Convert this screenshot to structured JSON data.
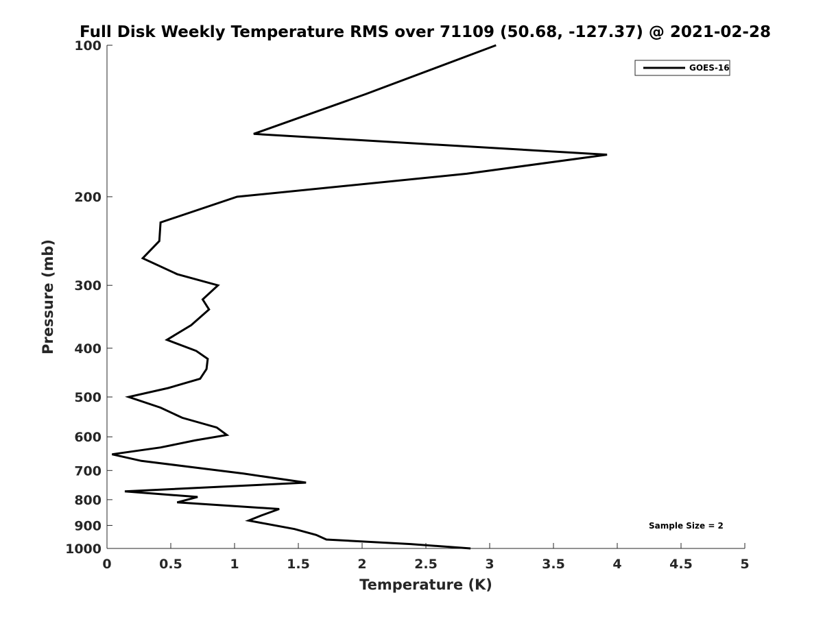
{
  "chart_data": {
    "type": "line",
    "title": "Full Disk Weekly Temperature RMS over 71109 (50.68, -127.37) @ 2021-02-28",
    "xlabel": "Temperature (K)",
    "ylabel": "Pressure (mb)",
    "xlim": [
      0,
      5
    ],
    "ylim": [
      100,
      1000
    ],
    "y_scale": "log",
    "y_reversed": true,
    "x_ticks": [
      0,
      0.5,
      1,
      1.5,
      2,
      2.5,
      3,
      3.5,
      4,
      4.5,
      5
    ],
    "x_tick_labels": [
      "0",
      "0.5",
      "1",
      "1.5",
      "2",
      "2.5",
      "3",
      "3.5",
      "4",
      "4.5",
      "5"
    ],
    "y_ticks": [
      100,
      200,
      300,
      400,
      500,
      600,
      700,
      800,
      900,
      1000
    ],
    "y_tick_labels": [
      "100",
      "200",
      "300",
      "400",
      "500",
      "600",
      "700",
      "800",
      "900",
      "1000"
    ],
    "grid": false,
    "legend_position": "top-right",
    "annotation": "Sample Size = 2",
    "series": [
      {
        "name": "GOES-16",
        "color": "#000000",
        "points": [
          [
            3.05,
            100
          ],
          [
            2.03,
            125
          ],
          [
            1.15,
            150
          ],
          [
            3.92,
            165
          ],
          [
            2.82,
            180
          ],
          [
            1.02,
            200
          ],
          [
            0.42,
            225
          ],
          [
            0.41,
            245
          ],
          [
            0.28,
            265
          ],
          [
            0.55,
            285
          ],
          [
            0.87,
            300
          ],
          [
            0.75,
            320
          ],
          [
            0.8,
            335
          ],
          [
            0.66,
            360
          ],
          [
            0.47,
            385
          ],
          [
            0.7,
            405
          ],
          [
            0.79,
            420
          ],
          [
            0.78,
            440
          ],
          [
            0.73,
            460
          ],
          [
            0.48,
            480
          ],
          [
            0.17,
            500
          ],
          [
            0.42,
            525
          ],
          [
            0.59,
            550
          ],
          [
            0.86,
            575
          ],
          [
            0.94,
            595
          ],
          [
            0.69,
            610
          ],
          [
            0.42,
            630
          ],
          [
            0.04,
            650
          ],
          [
            0.27,
            670
          ],
          [
            0.68,
            690
          ],
          [
            1.07,
            710
          ],
          [
            1.56,
            740
          ],
          [
            0.14,
            770
          ],
          [
            0.71,
            790
          ],
          [
            0.55,
            810
          ],
          [
            1.35,
            835
          ],
          [
            1.21,
            860
          ],
          [
            1.11,
            880
          ],
          [
            1.47,
            915
          ],
          [
            1.64,
            940
          ],
          [
            1.72,
            960
          ],
          [
            2.38,
            980
          ],
          [
            2.85,
            1000
          ]
        ]
      }
    ]
  }
}
